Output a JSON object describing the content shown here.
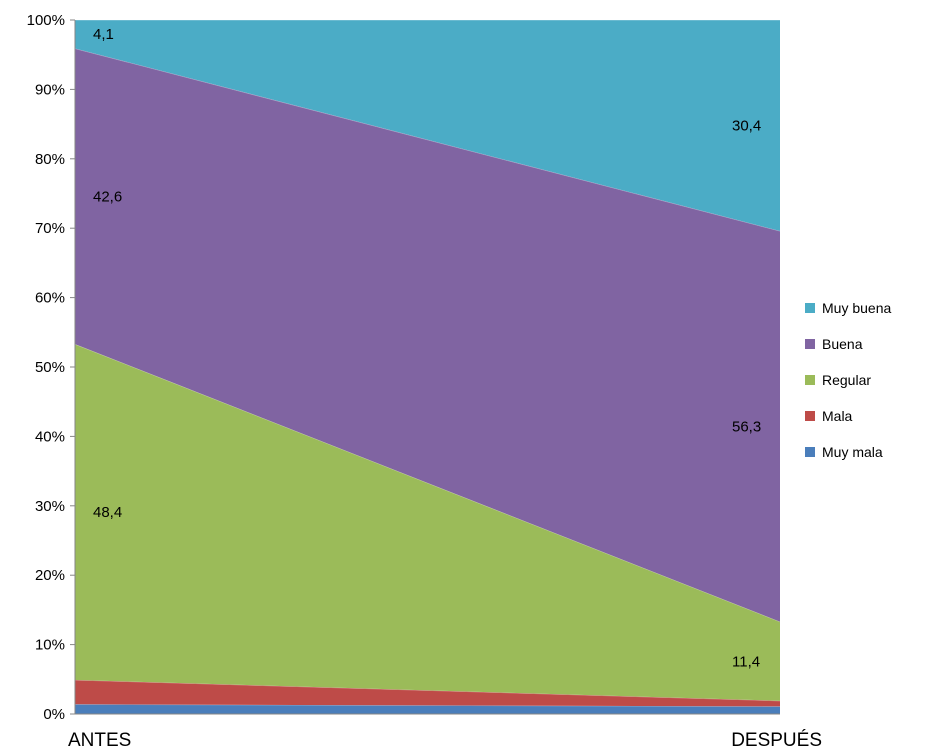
{
  "chart_data": {
    "type": "area",
    "stacked": "percent",
    "categories": [
      "ANTES",
      "DESPUÉS"
    ],
    "series": [
      {
        "name": "Muy mala",
        "values": [
          1.4,
          1.1
        ],
        "color": "#4a7ebb"
      },
      {
        "name": "Mala",
        "values": [
          3.5,
          0.8
        ],
        "color": "#be4b48"
      },
      {
        "name": "Regular",
        "values": [
          48.4,
          11.4
        ],
        "color": "#9bbb59"
      },
      {
        "name": "Buena",
        "values": [
          42.6,
          56.3
        ],
        "color": "#8064a2"
      },
      {
        "name": "Muy buena",
        "values": [
          4.1,
          30.4
        ],
        "color": "#4bacc6"
      }
    ],
    "data_labels": [
      {
        "series": "Muy buena",
        "category": "ANTES",
        "text": "4,1"
      },
      {
        "series": "Muy buena",
        "category": "DESPUÉS",
        "text": "30,4"
      },
      {
        "series": "Buena",
        "category": "ANTES",
        "text": "42,6"
      },
      {
        "series": "Buena",
        "category": "DESPUÉS",
        "text": "56,3"
      },
      {
        "series": "Regular",
        "category": "ANTES",
        "text": "48,4"
      },
      {
        "series": "Regular",
        "category": "DESPUÉS",
        "text": "11,4"
      }
    ],
    "y_ticks": [
      "0%",
      "10%",
      "20%",
      "30%",
      "40%",
      "50%",
      "60%",
      "70%",
      "80%",
      "90%",
      "100%"
    ],
    "ylim": [
      0,
      100
    ],
    "grid": false,
    "legend": {
      "position": "right",
      "entries": [
        "Muy buena",
        "Buena",
        "Regular",
        "Mala",
        "Muy mala"
      ]
    },
    "title": "",
    "xlabel": "",
    "ylabel": ""
  }
}
